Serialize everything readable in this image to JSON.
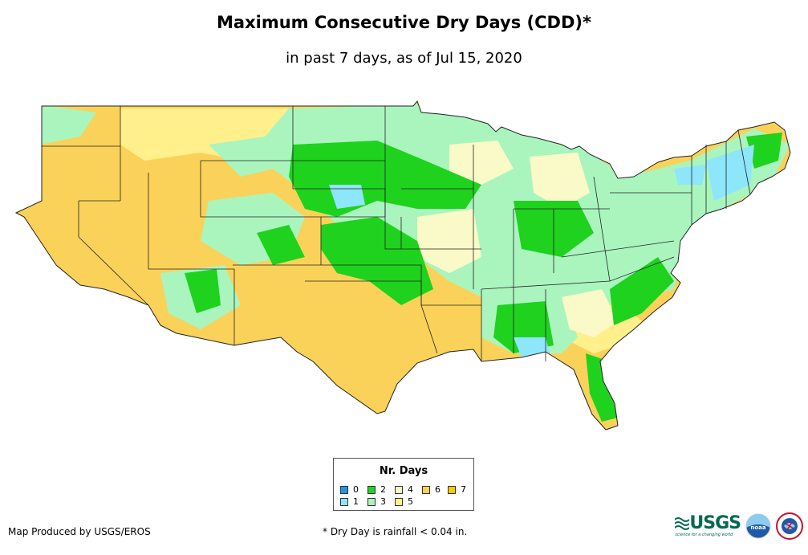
{
  "header": {
    "title": "Maximum Consecutive Dry Days (CDD)*",
    "subtitle": "in past 7 days, as of Jul 15, 2020"
  },
  "legend": {
    "title": "Nr. Days",
    "items": [
      {
        "label": "0",
        "color": "#1e96e6"
      },
      {
        "label": "1",
        "color": "#8ee6fa"
      },
      {
        "label": "2",
        "color": "#1ed21e"
      },
      {
        "label": "3",
        "color": "#aaf5be"
      },
      {
        "label": "4",
        "color": "#fafac8"
      },
      {
        "label": "5",
        "color": "#fff08c"
      },
      {
        "label": "6",
        "color": "#fad25a"
      },
      {
        "label": "7",
        "color": "#ffc800"
      }
    ]
  },
  "footer": {
    "producer": "Map Produced by USGS/EROS",
    "note": "* Dry Day is rainfall < 0.04 in."
  },
  "logos": {
    "usgs_text": "USGS",
    "usgs_tagline": "science for a changing world",
    "noaa_text": "noaa"
  }
}
